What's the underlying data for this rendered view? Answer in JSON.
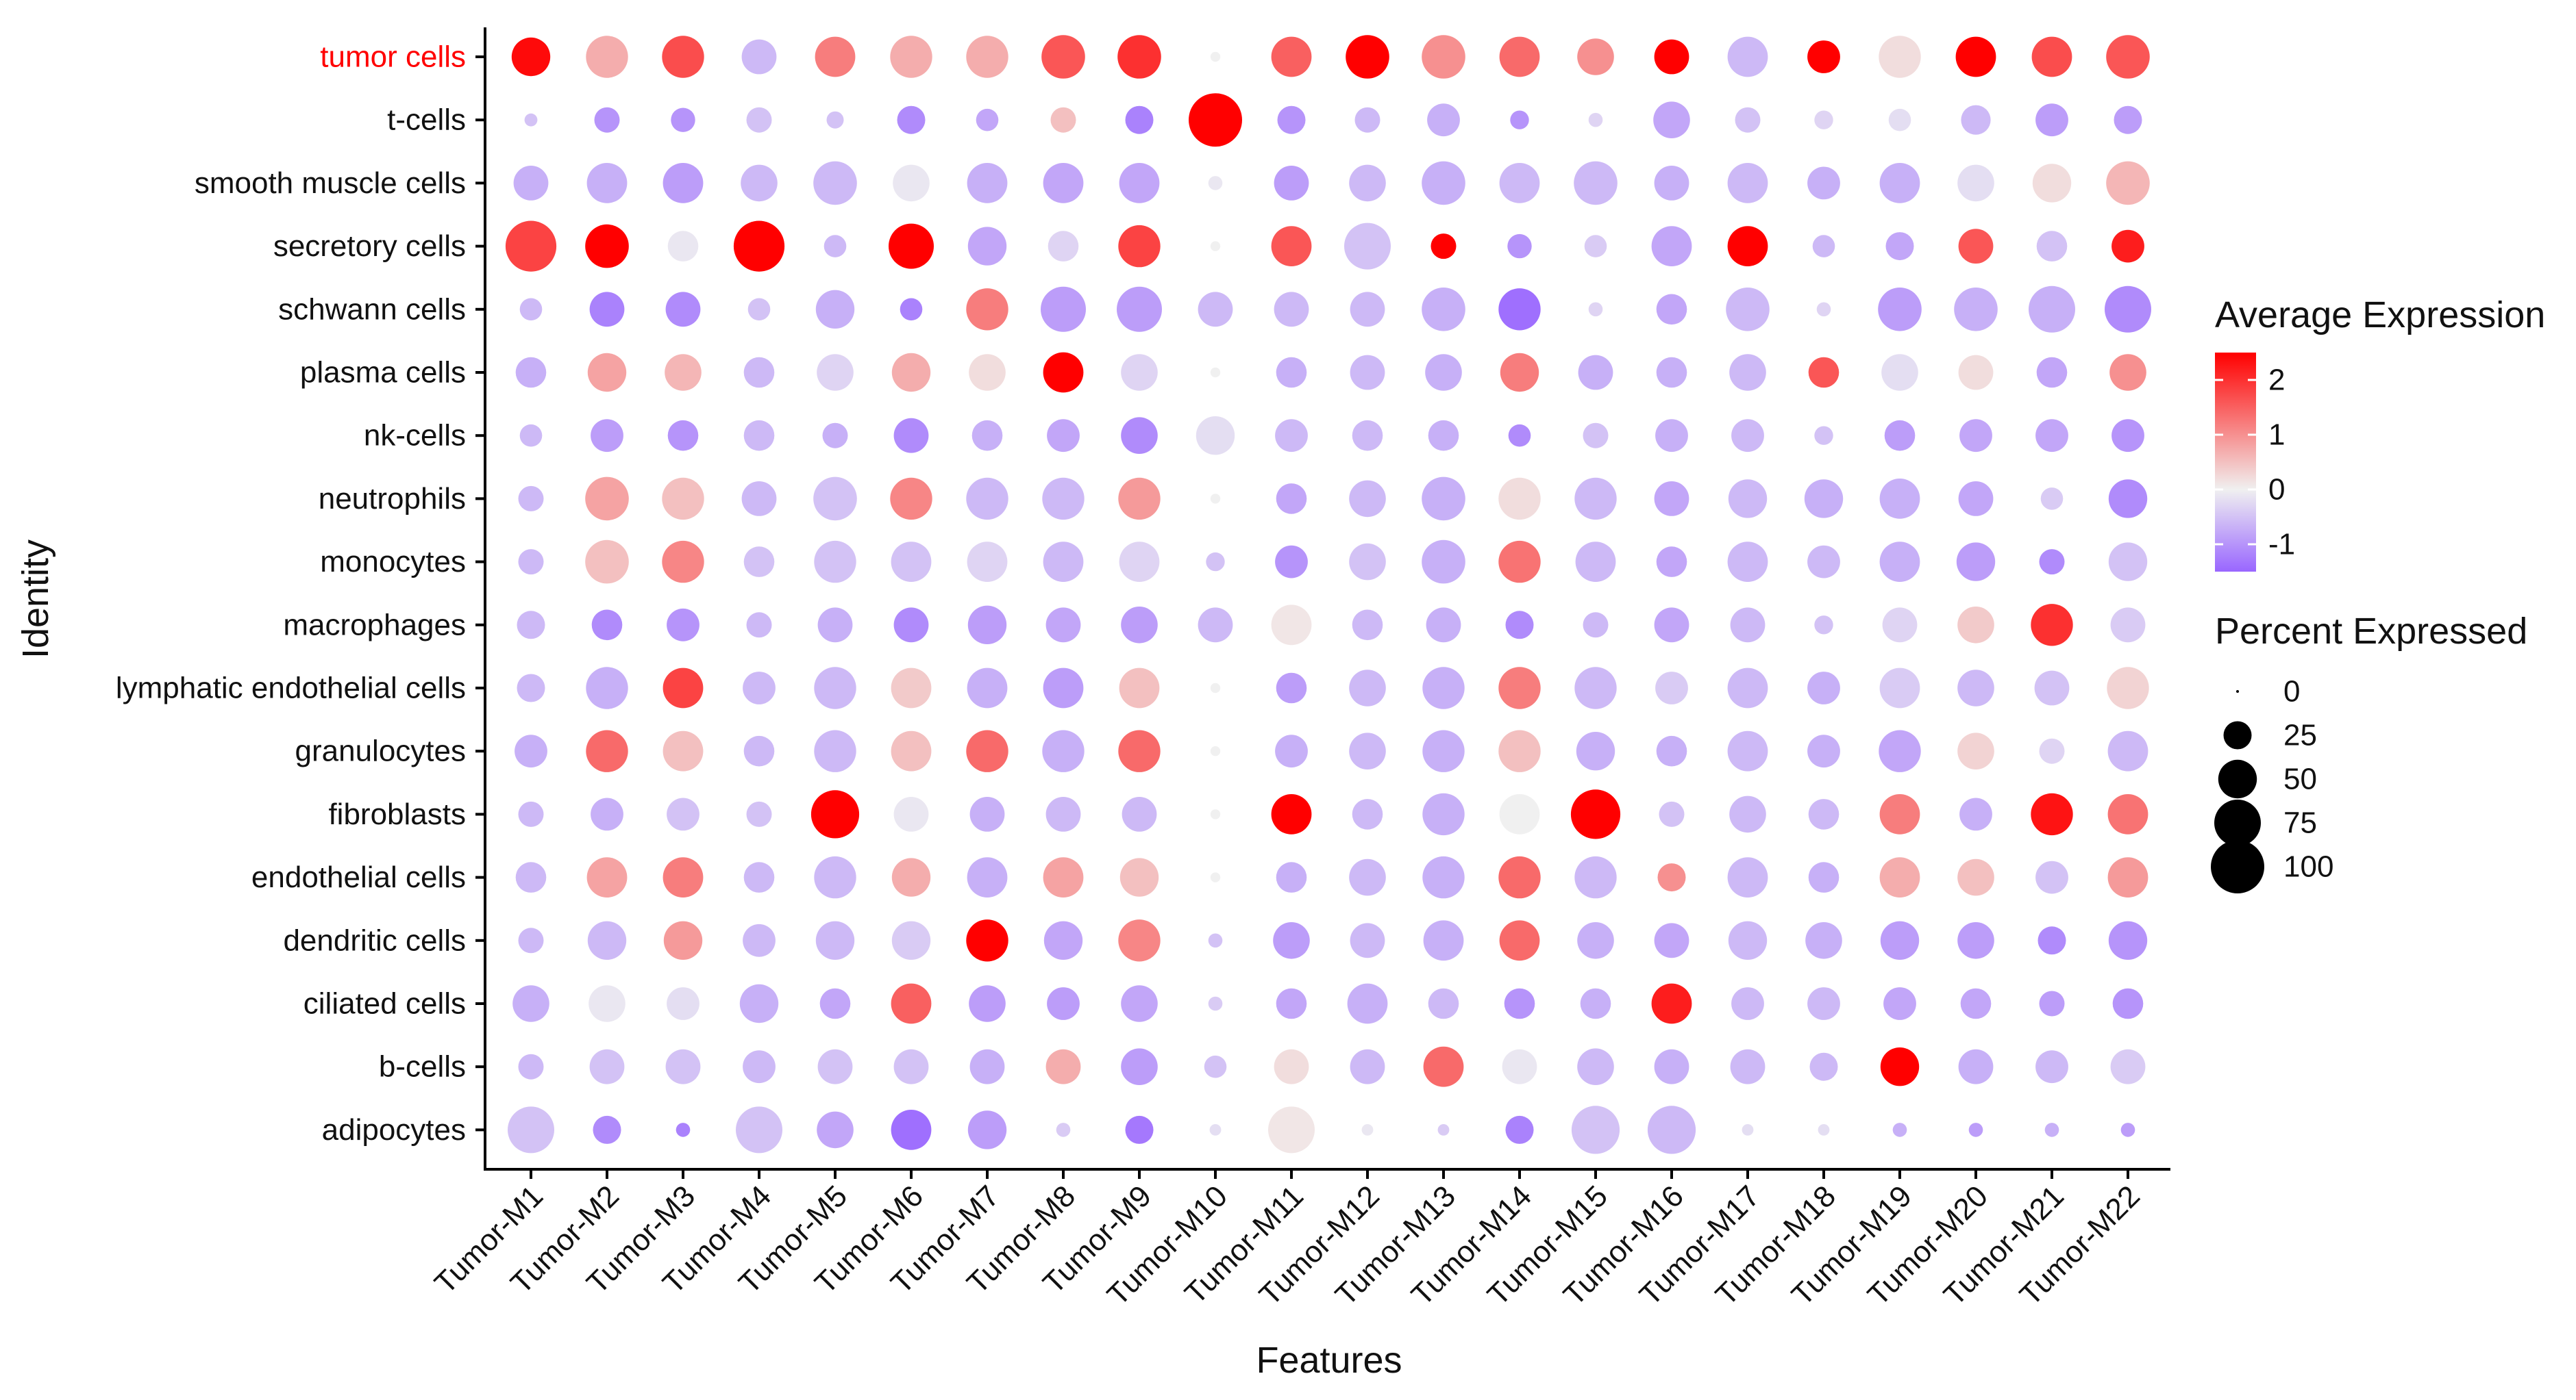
{
  "chart_data": {
    "type": "dotplot",
    "xlabel": "Features",
    "ylabel": "Identity",
    "features": [
      "Tumor-M1",
      "Tumor-M2",
      "Tumor-M3",
      "Tumor-M4",
      "Tumor-M5",
      "Tumor-M6",
      "Tumor-M7",
      "Tumor-M8",
      "Tumor-M9",
      "Tumor-M10",
      "Tumor-M11",
      "Tumor-M12",
      "Tumor-M13",
      "Tumor-M14",
      "Tumor-M15",
      "Tumor-M16",
      "Tumor-M17",
      "Tumor-M18",
      "Tumor-M19",
      "Tumor-M20",
      "Tumor-M21",
      "Tumor-M22"
    ],
    "identities": [
      "tumor cells",
      "t-cells",
      "smooth muscle cells",
      "secretory cells",
      "schwann cells",
      "plasma cells",
      "nk-cells",
      "neutrophils",
      "monocytes",
      "macrophages",
      "lymphatic endothelial cells",
      "granulocytes",
      "fibroblasts",
      "endothelial cells",
      "dendritic cells",
      "ciliated cells",
      "b-cells",
      "adipocytes"
    ],
    "highlighted_identity": "tumor cells",
    "highlight_color": "#ff0000",
    "rows": [
      {
        "identity": "tumor cells",
        "avg_exp": [
          2.4,
          0.7,
          1.7,
          -0.6,
          1.2,
          0.7,
          0.7,
          1.6,
          2.0,
          0.0,
          1.5,
          2.5,
          1.0,
          1.4,
          1.0,
          2.5,
          -0.6,
          2.5,
          0.2,
          2.5,
          1.7,
          1.6
        ],
        "pct_exp": [
          50,
          60,
          60,
          40,
          55,
          60,
          60,
          65,
          65,
          2,
          55,
          65,
          65,
          55,
          45,
          40,
          55,
          35,
          60,
          55,
          55,
          65
        ]
      },
      {
        "identity": "t-cells",
        "avg_exp": [
          -0.5,
          -1.0,
          -1.0,
          -0.5,
          -0.5,
          -1.1,
          -0.8,
          0.5,
          -1.2,
          2.5,
          -1.0,
          -0.6,
          -0.7,
          -1.0,
          -0.3,
          -0.8,
          -0.5,
          -0.3,
          -0.2,
          -0.6,
          -0.9,
          -0.9
        ],
        "pct_exp": [
          4,
          20,
          18,
          20,
          8,
          25,
          15,
          20,
          25,
          100,
          25,
          20,
          35,
          10,
          5,
          45,
          20,
          10,
          15,
          28,
          35,
          25
        ]
      },
      {
        "identity": "smooth muscle cells",
        "avg_exp": [
          -0.7,
          -0.7,
          -0.9,
          -0.6,
          -0.6,
          -0.1,
          -0.7,
          -0.8,
          -0.8,
          -0.1,
          -0.9,
          -0.6,
          -0.7,
          -0.6,
          -0.6,
          -0.7,
          -0.6,
          -0.7,
          -0.7,
          -0.2,
          0.2,
          0.6
        ],
        "pct_exp": [
          40,
          55,
          55,
          45,
          65,
          45,
          55,
          55,
          55,
          5,
          40,
          45,
          65,
          55,
          65,
          40,
          55,
          35,
          55,
          45,
          50,
          65
        ]
      },
      {
        "identity": "secretory cells",
        "avg_exp": [
          1.8,
          2.5,
          -0.1,
          2.5,
          -0.6,
          2.5,
          -0.8,
          -0.3,
          1.8,
          0.0,
          1.6,
          -0.5,
          2.5,
          -1.0,
          -0.4,
          -0.8,
          2.5,
          -0.6,
          -0.8,
          1.6,
          -0.5,
          2.2
        ],
        "pct_exp": [
          90,
          65,
          30,
          90,
          15,
          70,
          50,
          30,
          60,
          2,
          55,
          75,
          20,
          18,
          15,
          55,
          55,
          15,
          25,
          40,
          30,
          35
        ]
      },
      {
        "identity": "schwann cells",
        "avg_exp": [
          -0.6,
          -1.2,
          -1.1,
          -0.5,
          -0.7,
          -1.2,
          1.2,
          -0.9,
          -0.9,
          -0.6,
          -0.6,
          -0.6,
          -0.7,
          -1.4,
          -0.3,
          -0.8,
          -0.6,
          -0.3,
          -0.9,
          -0.7,
          -0.7,
          -1.1
        ],
        "pct_exp": [
          15,
          40,
          40,
          15,
          50,
          15,
          60,
          70,
          70,
          40,
          40,
          40,
          65,
          60,
          5,
          30,
          65,
          5,
          65,
          65,
          75,
          75
        ]
      },
      {
        "identity": "plasma cells",
        "avg_exp": [
          -0.7,
          0.8,
          0.6,
          -0.6,
          -0.3,
          0.7,
          0.2,
          2.5,
          -0.3,
          0.0,
          -0.7,
          -0.6,
          -0.7,
          1.2,
          -0.7,
          -0.7,
          -0.6,
          1.6,
          -0.2,
          0.2,
          -0.8,
          1.0
        ],
        "pct_exp": [
          30,
          50,
          45,
          30,
          45,
          50,
          45,
          55,
          45,
          2,
          30,
          40,
          45,
          50,
          40,
          30,
          45,
          30,
          45,
          40,
          30,
          45
        ]
      },
      {
        "identity": "nk-cells",
        "avg_exp": [
          -0.6,
          -0.9,
          -1.0,
          -0.6,
          -0.7,
          -1.1,
          -0.7,
          -0.8,
          -1.1,
          -0.2,
          -0.6,
          -0.6,
          -0.7,
          -1.1,
          -0.5,
          -0.7,
          -0.6,
          -0.5,
          -0.9,
          -0.8,
          -0.8,
          -1.0
        ],
        "pct_exp": [
          15,
          35,
          30,
          30,
          20,
          40,
          30,
          35,
          45,
          50,
          35,
          30,
          30,
          15,
          20,
          35,
          35,
          10,
          30,
          35,
          35,
          35
        ]
      },
      {
        "identity": "neutrophils",
        "avg_exp": [
          -0.6,
          0.8,
          0.5,
          -0.6,
          -0.5,
          1.1,
          -0.6,
          -0.6,
          0.9,
          0.0,
          -0.8,
          -0.6,
          -0.7,
          0.2,
          -0.6,
          -0.8,
          -0.6,
          -0.7,
          -0.7,
          -0.8,
          -0.4,
          -1.1
        ],
        "pct_exp": [
          20,
          65,
          60,
          40,
          65,
          60,
          60,
          60,
          60,
          2,
          30,
          45,
          65,
          60,
          60,
          40,
          50,
          50,
          55,
          40,
          15,
          50
        ]
      },
      {
        "identity": "monocytes",
        "avg_exp": [
          -0.6,
          0.5,
          1.1,
          -0.5,
          -0.5,
          -0.5,
          -0.3,
          -0.6,
          -0.3,
          -0.5,
          -1.0,
          -0.5,
          -0.7,
          1.3,
          -0.6,
          -0.8,
          -0.6,
          -0.6,
          -0.7,
          -0.9,
          -1.1,
          -0.5
        ],
        "pct_exp": [
          20,
          65,
          60,
          30,
          60,
          55,
          55,
          55,
          55,
          10,
          35,
          45,
          65,
          60,
          55,
          30,
          55,
          35,
          55,
          50,
          20,
          50
        ]
      },
      {
        "identity": "macrophages",
        "avg_exp": [
          -0.6,
          -1.1,
          -1.0,
          -0.6,
          -0.7,
          -1.1,
          -0.9,
          -0.8,
          -0.9,
          -0.6,
          0.1,
          -0.6,
          -0.7,
          -1.1,
          -0.6,
          -0.8,
          -0.6,
          -0.5,
          -0.3,
          0.4,
          2.0,
          -0.4
        ],
        "pct_exp": [
          25,
          30,
          35,
          20,
          40,
          40,
          50,
          40,
          45,
          40,
          55,
          30,
          40,
          25,
          20,
          40,
          40,
          10,
          40,
          45,
          60,
          40
        ]
      },
      {
        "identity": "lymphatic endothelial cells",
        "avg_exp": [
          -0.6,
          -0.7,
          1.8,
          -0.6,
          -0.6,
          0.4,
          -0.7,
          -0.9,
          0.5,
          0.0,
          -0.9,
          -0.6,
          -0.7,
          1.2,
          -0.6,
          -0.4,
          -0.6,
          -0.7,
          -0.4,
          -0.6,
          -0.5,
          0.3
        ],
        "pct_exp": [
          25,
          60,
          55,
          35,
          60,
          55,
          55,
          55,
          55,
          2,
          30,
          45,
          60,
          60,
          60,
          35,
          55,
          35,
          55,
          45,
          40,
          60
        ]
      },
      {
        "identity": "granulocytes",
        "avg_exp": [
          -0.7,
          1.4,
          0.5,
          -0.6,
          -0.6,
          0.5,
          1.4,
          -0.7,
          1.4,
          0.0,
          -0.7,
          -0.6,
          -0.7,
          0.5,
          -0.7,
          -0.7,
          -0.6,
          -0.7,
          -0.8,
          0.3,
          -0.3,
          -0.6
        ],
        "pct_exp": [
          35,
          60,
          55,
          30,
          60,
          55,
          60,
          60,
          60,
          2,
          35,
          45,
          60,
          60,
          50,
          30,
          55,
          35,
          60,
          45,
          20,
          55
        ]
      },
      {
        "identity": "fibroblasts",
        "avg_exp": [
          -0.6,
          -0.7,
          -0.5,
          -0.5,
          2.5,
          -0.1,
          -0.7,
          -0.6,
          -0.6,
          0.0,
          2.5,
          -0.6,
          -0.7,
          0.0,
          2.5,
          -0.5,
          -0.6,
          -0.6,
          1.2,
          -0.7,
          2.3,
          1.3
        ],
        "pct_exp": [
          20,
          35,
          35,
          20,
          80,
          40,
          40,
          40,
          40,
          2,
          55,
          30,
          60,
          55,
          85,
          20,
          45,
          30,
          55,
          35,
          60,
          55
        ]
      },
      {
        "identity": "endothelial cells",
        "avg_exp": [
          -0.6,
          0.8,
          1.2,
          -0.6,
          -0.6,
          0.7,
          -0.7,
          0.8,
          0.5,
          0.0,
          -0.7,
          -0.6,
          -0.7,
          1.4,
          -0.6,
          1.0,
          -0.6,
          -0.7,
          0.7,
          0.5,
          -0.5,
          0.9
        ],
        "pct_exp": [
          30,
          55,
          55,
          30,
          60,
          50,
          55,
          55,
          50,
          2,
          30,
          45,
          60,
          60,
          60,
          25,
          55,
          30,
          55,
          45,
          35,
          55
        ]
      },
      {
        "identity": "dendritic cells",
        "avg_exp": [
          -0.6,
          -0.6,
          0.9,
          -0.6,
          -0.6,
          -0.4,
          2.5,
          -0.8,
          1.1,
          -0.5,
          -0.9,
          -0.6,
          -0.7,
          1.4,
          -0.7,
          -0.8,
          -0.6,
          -0.7,
          -0.9,
          -0.9,
          -1.1,
          -1.0
        ],
        "pct_exp": [
          20,
          50,
          50,
          35,
          50,
          50,
          60,
          50,
          60,
          5,
          45,
          40,
          55,
          55,
          45,
          40,
          50,
          45,
          50,
          45,
          25,
          50
        ]
      },
      {
        "identity": "ciliated cells",
        "avg_exp": [
          -0.7,
          -0.1,
          -0.2,
          -0.7,
          -0.8,
          1.5,
          -0.9,
          -0.9,
          -0.8,
          -0.4,
          -0.8,
          -0.7,
          -0.6,
          -1.0,
          -0.7,
          2.2,
          -0.6,
          -0.6,
          -0.8,
          -0.8,
          -0.9,
          -1.0
        ],
        "pct_exp": [
          45,
          45,
          35,
          50,
          30,
          55,
          45,
          35,
          45,
          5,
          30,
          55,
          30,
          30,
          30,
          55,
          35,
          35,
          35,
          30,
          20,
          30
        ]
      },
      {
        "identity": "b-cells",
        "avg_exp": [
          -0.6,
          -0.5,
          -0.5,
          -0.6,
          -0.5,
          -0.5,
          -0.7,
          0.7,
          -0.9,
          -0.5,
          0.2,
          -0.6,
          1.4,
          -0.1,
          -0.6,
          -0.7,
          -0.6,
          -0.6,
          2.5,
          -0.7,
          -0.6,
          -0.4
        ],
        "pct_exp": [
          20,
          40,
          40,
          35,
          40,
          40,
          40,
          40,
          45,
          15,
          40,
          40,
          55,
          40,
          45,
          40,
          40,
          25,
          50,
          40,
          35,
          40
        ]
      },
      {
        "identity": "adipocytes",
        "avg_exp": [
          -0.5,
          -1.1,
          -1.2,
          -0.5,
          -0.8,
          -1.4,
          -0.9,
          -0.4,
          -1.3,
          -0.2,
          0.1,
          -0.1,
          -0.4,
          -1.2,
          -0.5,
          -0.6,
          -0.2,
          -0.2,
          -0.7,
          -0.9,
          -0.7,
          -0.9
        ],
        "pct_exp": [
          75,
          25,
          5,
          75,
          45,
          55,
          50,
          5,
          25,
          3,
          75,
          3,
          3,
          25,
          80,
          80,
          3,
          3,
          5,
          5,
          5,
          5
        ]
      }
    ],
    "color_legend": {
      "title": "Average Expression",
      "ticks": [
        2,
        1,
        0,
        -1
      ],
      "tick_labels": [
        "2",
        "1",
        "0",
        "-1"
      ],
      "range": [
        -1.5,
        2.5
      ],
      "low_color": "#9966ff",
      "mid_color": "#f0f0f0",
      "high_color": "#ff0000",
      "placement": "right"
    },
    "size_legend": {
      "title": "Percent Expressed",
      "values": [
        0,
        25,
        50,
        75,
        100
      ],
      "labels": [
        "0",
        "25",
        "50",
        "75",
        "100"
      ],
      "placement": "right"
    }
  }
}
